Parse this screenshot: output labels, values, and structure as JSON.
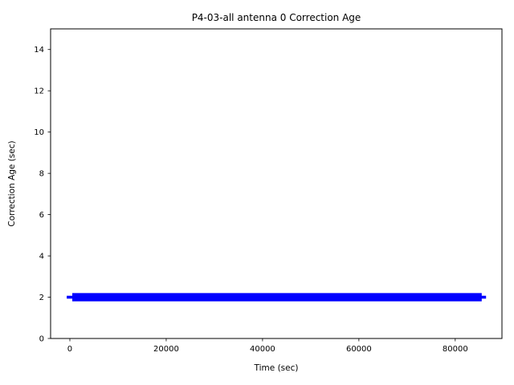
{
  "chart_data": {
    "type": "line",
    "title": "P4-03-all antenna 0 Correction Age",
    "xlabel": "Time (sec)",
    "ylabel": "Correction Age (sec)",
    "xlim": [
      -4000,
      89700
    ],
    "ylim": [
      0,
      15
    ],
    "xticks": [
      0,
      20000,
      40000,
      60000,
      80000
    ],
    "yticks": [
      0,
      2,
      4,
      6,
      8,
      10,
      12,
      14
    ],
    "grid": false,
    "legend": "none",
    "series": [
      {
        "name": "correction-age",
        "color": "#0000ff",
        "description": "dense band of points jittering around 2 sec for the whole day",
        "band": {
          "x": [
            500,
            85500
          ],
          "y": [
            1.8,
            2.2
          ]
        },
        "center_line": {
          "x": [
            -650,
            86400
          ],
          "y": [
            1.93,
            2.07
          ]
        },
        "nominal_value": 2,
        "x_span_sec": [
          0,
          86400
        ]
      }
    ]
  }
}
